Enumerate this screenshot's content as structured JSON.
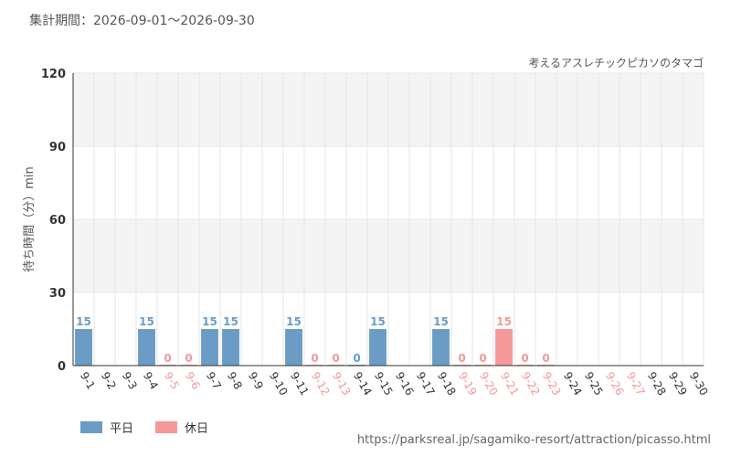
{
  "header": {
    "period": "集計期間：2026-09-01〜2026-09-30",
    "subtitle": "考えるアスレチックピカソのタマゴ"
  },
  "legend": {
    "weekday": "平日",
    "holiday": "休日"
  },
  "footer": {
    "source_url": "https://parksreal.jp/sagamiko-resort/attraction/picasso.html"
  },
  "colors": {
    "weekday": "#6a9cc5",
    "holiday": "#f49898",
    "grid_band": "#f4f4f4",
    "grid_line": "#e6e6e6"
  },
  "chart_data": {
    "type": "bar",
    "ylabel": "待ち時間（分）min",
    "ylim": [
      0,
      120
    ],
    "yticks": [
      0,
      30,
      60,
      90,
      120
    ],
    "categories": [
      "9-1",
      "9-2",
      "9-3",
      "9-4",
      "9-5",
      "9-6",
      "9-7",
      "9-8",
      "9-9",
      "9-10",
      "9-11",
      "9-12",
      "9-13",
      "9-14",
      "9-15",
      "9-16",
      "9-17",
      "9-18",
      "9-19",
      "9-20",
      "9-21",
      "9-22",
      "9-23",
      "9-24",
      "9-25",
      "9-26",
      "9-27",
      "9-28",
      "9-29",
      "9-30"
    ],
    "day_type": [
      "weekday",
      "weekday",
      "weekday",
      "weekday",
      "holiday",
      "holiday",
      "weekday",
      "weekday",
      "weekday",
      "weekday",
      "weekday",
      "holiday",
      "holiday",
      "weekday",
      "weekday",
      "weekday",
      "weekday",
      "weekday",
      "holiday",
      "holiday",
      "holiday",
      "holiday",
      "holiday",
      "weekday",
      "weekday",
      "holiday",
      "holiday",
      "weekday",
      "weekday",
      "weekday"
    ],
    "values": [
      15,
      null,
      null,
      15,
      0,
      0,
      15,
      15,
      null,
      null,
      15,
      0,
      0,
      0,
      15,
      null,
      null,
      15,
      0,
      0,
      15,
      0,
      0,
      null,
      null,
      null,
      null,
      null,
      null,
      null
    ],
    "legend_position": "bottom-left",
    "grid": true
  }
}
